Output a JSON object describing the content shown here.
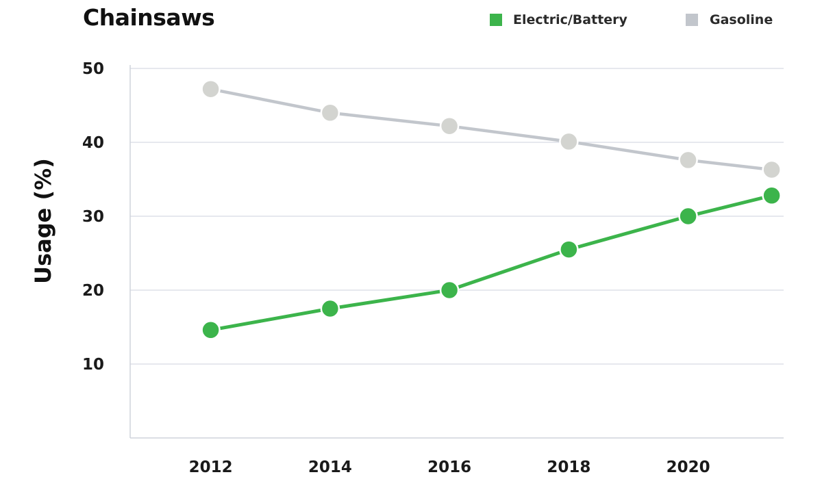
{
  "chart_data": {
    "type": "line",
    "title": "Chainsaws",
    "xlabel": "",
    "ylabel": "Usage (%)",
    "x": [
      2012,
      2014,
      2016,
      2018,
      2020,
      2021.4
    ],
    "x_tick_labels": [
      "2012",
      "2014",
      "2016",
      "2018",
      "2020"
    ],
    "x_ticks": [
      2012,
      2014,
      2016,
      2018,
      2020
    ],
    "y_tick_labels": [
      "10",
      "20",
      "30",
      "40",
      "50"
    ],
    "y_ticks": [
      10,
      20,
      30,
      40,
      50
    ],
    "xlim": [
      2010.65,
      2021.6
    ],
    "ylim": [
      0,
      50
    ],
    "grid": true,
    "legend_position": "top-right",
    "series": [
      {
        "name": "Electric/Battery",
        "color": "#3cb44b",
        "values": [
          14.6,
          17.5,
          20.0,
          25.5,
          30.0,
          32.8
        ]
      },
      {
        "name": "Gasoline",
        "color": "#c2c6cc",
        "marker_color": "#d3d4d0",
        "values": [
          47.2,
          44.0,
          42.2,
          40.1,
          37.6,
          36.3
        ]
      }
    ]
  }
}
